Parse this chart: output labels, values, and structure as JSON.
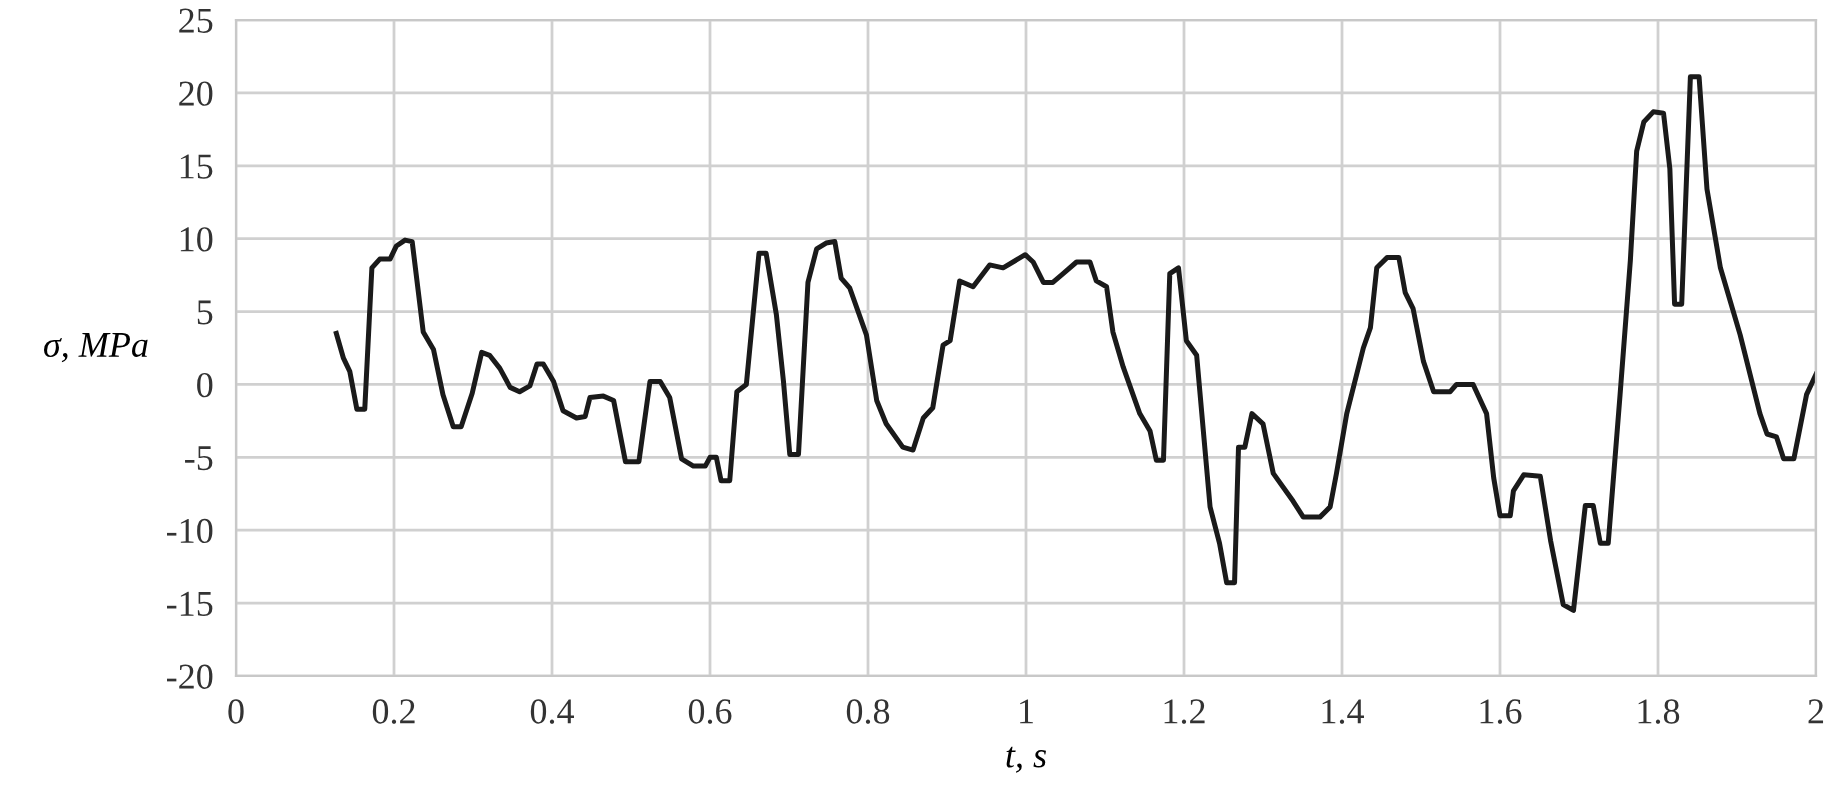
{
  "chart_data": {
    "type": "line",
    "xlabel": "t, s",
    "ylabel": "σ, MPa",
    "xlim": [
      0,
      2
    ],
    "ylim": [
      -20,
      25
    ],
    "xticks": [
      0,
      0.2,
      0.4,
      0.6,
      0.8,
      1,
      1.2,
      1.4,
      1.6,
      1.8,
      2
    ],
    "yticks": [
      -20,
      -15,
      -10,
      -5,
      0,
      5,
      10,
      15,
      20,
      25
    ],
    "grid": true,
    "legend": false,
    "marker": "none",
    "line_style": "solid",
    "series": [
      {
        "color": "#1a1a1a",
        "x": [
          0.127,
          0.136,
          0.144,
          0.153,
          0.163,
          0.172,
          0.182,
          0.195,
          0.203,
          0.214,
          0.223,
          0.237,
          0.25,
          0.262,
          0.275,
          0.285,
          0.299,
          0.311,
          0.321,
          0.334,
          0.347,
          0.359,
          0.372,
          0.381,
          0.389,
          0.402,
          0.414,
          0.431,
          0.442,
          0.448,
          0.465,
          0.478,
          0.493,
          0.51,
          0.524,
          0.537,
          0.549,
          0.564,
          0.579,
          0.594,
          0.6,
          0.608,
          0.614,
          0.625,
          0.634,
          0.646,
          0.662,
          0.671,
          0.684,
          0.693,
          0.701,
          0.712,
          0.724,
          0.735,
          0.747,
          0.758,
          0.766,
          0.777,
          0.798,
          0.811,
          0.823,
          0.844,
          0.857,
          0.87,
          0.882,
          0.895,
          0.904,
          0.916,
          0.933,
          0.954,
          0.971,
          0.999,
          1.009,
          1.022,
          1.034,
          1.047,
          1.064,
          1.081,
          1.089,
          1.102,
          1.11,
          1.123,
          1.144,
          1.157,
          1.165,
          1.174,
          1.182,
          1.193,
          1.203,
          1.216,
          1.233,
          1.245,
          1.254,
          1.264,
          1.269,
          1.277,
          1.286,
          1.3,
          1.313,
          1.338,
          1.351,
          1.372,
          1.385,
          1.393,
          1.406,
          1.427,
          1.436,
          1.444,
          1.457,
          1.472,
          1.48,
          1.49,
          1.503,
          1.516,
          1.537,
          1.545,
          1.566,
          1.583,
          1.592,
          1.6,
          1.613,
          1.617,
          1.63,
          1.651,
          1.664,
          1.68,
          1.693,
          1.708,
          1.718,
          1.727,
          1.737,
          1.752,
          1.765,
          1.773,
          1.782,
          1.794,
          1.807,
          1.815,
          1.821,
          1.83,
          1.841,
          1.852,
          1.862,
          1.879,
          1.904,
          1.929,
          1.938,
          1.95,
          1.959,
          1.972,
          1.988,
          2.0
        ],
        "values": [
          3.5,
          1.8,
          0.9,
          -1.7,
          -1.7,
          8.0,
          8.6,
          8.6,
          9.5,
          9.9,
          9.8,
          3.6,
          2.4,
          -0.7,
          -2.9,
          -2.9,
          -0.6,
          2.2,
          2.0,
          1.1,
          -0.2,
          -0.5,
          -0.1,
          1.4,
          1.4,
          0.2,
          -1.8,
          -2.3,
          -2.2,
          -0.9,
          -0.8,
          -1.1,
          -5.3,
          -5.3,
          0.2,
          0.2,
          -0.9,
          -5.1,
          -5.6,
          -5.6,
          -5.0,
          -5.0,
          -6.6,
          -6.6,
          -0.5,
          0.0,
          9.0,
          9.0,
          4.8,
          0.2,
          -4.8,
          -4.8,
          7.0,
          9.3,
          9.7,
          9.8,
          7.3,
          6.6,
          3.4,
          -1.1,
          -2.7,
          -4.3,
          -4.5,
          -2.3,
          -1.6,
          2.7,
          3.0,
          7.1,
          6.7,
          8.2,
          8.0,
          8.9,
          8.4,
          7.0,
          7.0,
          7.6,
          8.4,
          8.4,
          7.1,
          6.7,
          3.6,
          1.2,
          -2.0,
          -3.2,
          -5.2,
          -5.2,
          7.6,
          8.0,
          3.0,
          2.0,
          -8.4,
          -10.9,
          -13.6,
          -13.6,
          -4.3,
          -4.3,
          -2.0,
          -2.7,
          -6.1,
          -8.0,
          -9.1,
          -9.1,
          -8.4,
          -6.1,
          -2.0,
          2.5,
          3.9,
          8.0,
          8.7,
          8.7,
          6.3,
          5.2,
          1.6,
          -0.5,
          -0.5,
          0.0,
          0.0,
          -2.0,
          -6.4,
          -9.0,
          -9.0,
          -7.3,
          -6.2,
          -6.3,
          -10.7,
          -15.1,
          -15.5,
          -8.3,
          -8.3,
          -10.9,
          -10.9,
          -0.7,
          8.5,
          16.0,
          18.0,
          18.7,
          18.6,
          14.8,
          5.5,
          5.5,
          21.1,
          21.1,
          13.4,
          8.0,
          3.4,
          -2.0,
          -3.4,
          -3.6,
          -5.1,
          -5.1,
          -0.7,
          0.7
        ]
      }
    ]
  }
}
